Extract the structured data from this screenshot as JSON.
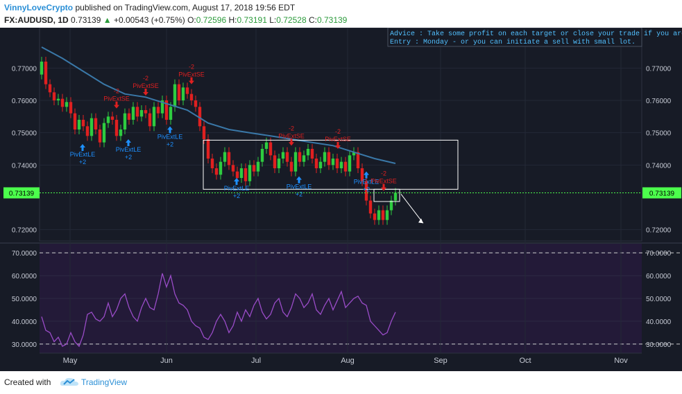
{
  "header": {
    "author": "VinnyLoveCrypto",
    "published_text": "published on TradingView.com, August 17, 2018 19:56 EDT",
    "symbol": "FX:AUDUSD, 1D",
    "last": "0.73139",
    "change_arrow": "▲",
    "change": "+0.00543 (+0.75%)",
    "o_label": "O:",
    "o_value": "0.72596",
    "h_label": "H:",
    "h_value": "0.73191",
    "l_label": "L:",
    "l_value": "0.72528",
    "c_label": "C:",
    "c_value": "0.73139"
  },
  "notes": {
    "advice": "Advice : Take some profit on each target or close your trade if you are c",
    "entry": "Entry : Monday - or you can initiate a sell with small lot."
  },
  "footer": {
    "created_with": "Created with",
    "brand": "TradingView"
  },
  "colors": {
    "background": "#171b26",
    "up": "#2ecc40",
    "down": "#e02020",
    "ma": "#3a78a8",
    "rsi": "#9a4cc8",
    "signal_up": "#1e90ff",
    "signal_down": "#e02020",
    "price_tag": "#4cff4c"
  },
  "chart_data": [
    {
      "type": "candlestick",
      "title": "FX:AUDUSD, 1D",
      "y_ticks": [
        0.77,
        0.76,
        0.75,
        0.74,
        0.72
      ],
      "y_tick_labels": [
        "0.77000",
        "0.76000",
        "0.75000",
        "0.74000",
        "0.72000"
      ],
      "ylim": [
        0.7165,
        0.7825
      ],
      "current_price": 0.73139,
      "current_price_label": "0.73139",
      "x_labels": [
        "May",
        "Jun",
        "Jul",
        "Aug",
        "Sep",
        "Oct",
        "Nov"
      ],
      "ma_path_values": [
        0.7765,
        0.773,
        0.769,
        0.765,
        0.762,
        0.761,
        0.759,
        0.757,
        0.753,
        0.751,
        0.75,
        0.749,
        0.748,
        0.747,
        0.746,
        0.744,
        0.742,
        0.7405
      ],
      "rectangles": [
        {
          "top": 0.7477,
          "bottom": 0.7325
        },
        {
          "top": 0.7325,
          "bottom": 0.73
        }
      ],
      "buy_signals": [
        {
          "label": "PivExtLE",
          "sub": "+2"
        },
        {
          "label": "PivExtLE",
          "sub": "+2"
        },
        {
          "label": "PivExtLE",
          "sub": "+2"
        },
        {
          "label": "PivExtLE",
          "sub": "+2"
        },
        {
          "label": "PivExtLE",
          "sub": "+2"
        },
        {
          "label": "PivExtLE",
          "sub": "+2"
        }
      ],
      "sell_signals": [
        {
          "label": "PivExtSE",
          "sub": "-2"
        },
        {
          "label": "PivExtSE",
          "sub": "-2"
        },
        {
          "label": "PivExtSE",
          "sub": "-2"
        },
        {
          "label": "PivExtSE",
          "sub": "-2"
        },
        {
          "label": "PivExtSE",
          "sub": "-2"
        },
        {
          "label": "PivExtSE",
          "sub": "-2"
        }
      ]
    },
    {
      "type": "line",
      "title": "RSI",
      "y_ticks": [
        70,
        60,
        50,
        40,
        30
      ],
      "y_tick_labels": [
        "70.0000",
        "60.0000",
        "50.0000",
        "40.0000",
        "30.0000"
      ],
      "ylim": [
        26,
        74
      ],
      "bands": [
        70,
        30
      ],
      "values": [
        42,
        36,
        35,
        31,
        33,
        29,
        30,
        35,
        31,
        29,
        34,
        43,
        44,
        41,
        40,
        42,
        48,
        42,
        45,
        50,
        52,
        46,
        42,
        40,
        46,
        50,
        46,
        45,
        52,
        61,
        55,
        60,
        52,
        48,
        47,
        45,
        40,
        38,
        37,
        33,
        32,
        35,
        40,
        43,
        40,
        35,
        38,
        44,
        40,
        45,
        42,
        47,
        50,
        44,
        41,
        43,
        48,
        50,
        44,
        42,
        46,
        52,
        50,
        46,
        48,
        52,
        45,
        43,
        47,
        50,
        45,
        49,
        53,
        46,
        48,
        50,
        51,
        48,
        47,
        40,
        38,
        36,
        34,
        35,
        40,
        44
      ]
    }
  ]
}
